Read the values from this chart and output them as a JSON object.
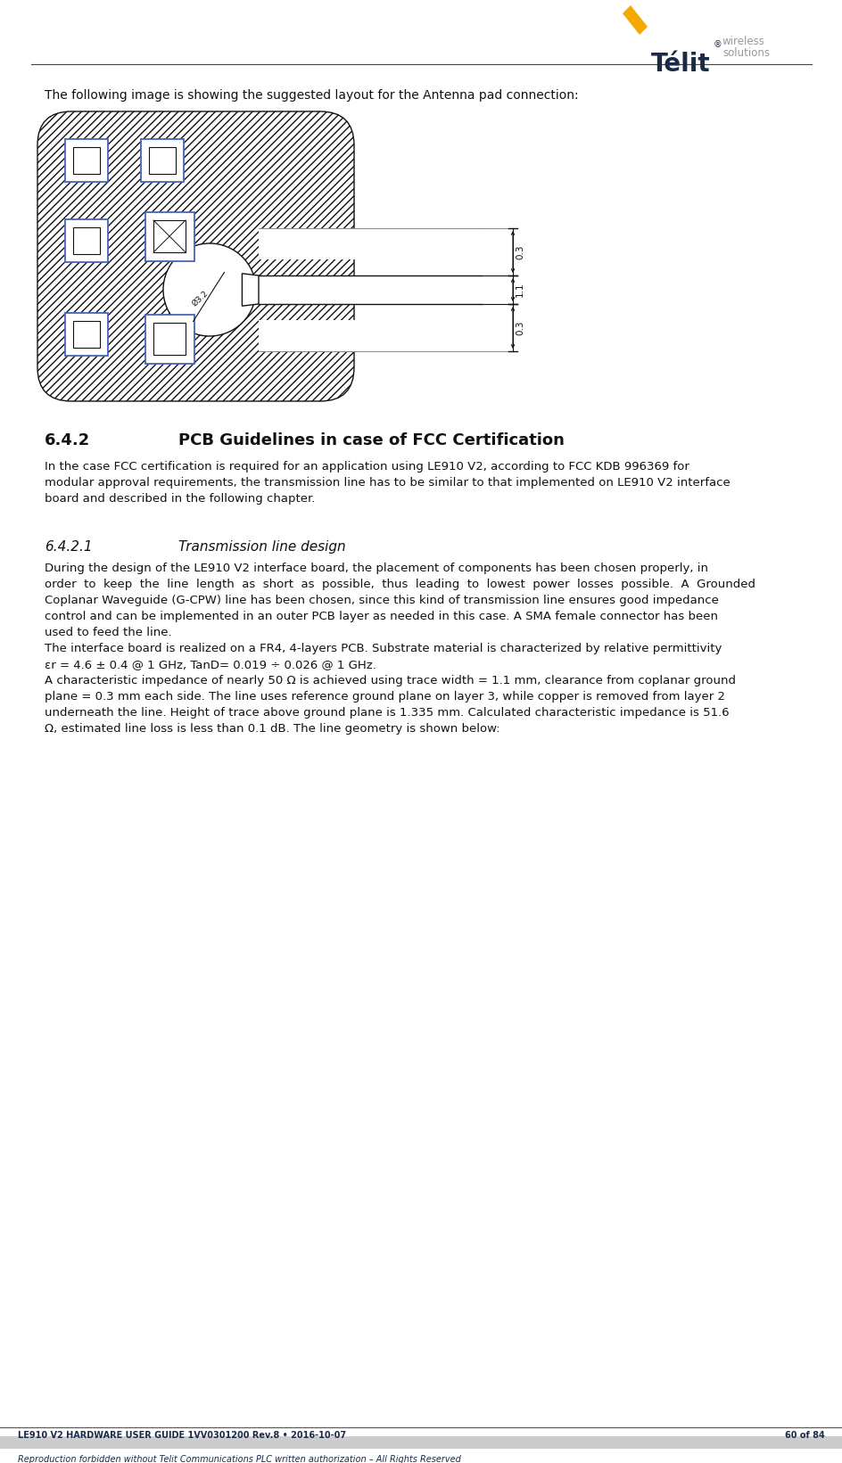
{
  "bg_color": "#ffffff",
  "telit_dark": "#1a2b4a",
  "telit_yellow": "#f5a800",
  "telit_gray": "#999999",
  "intro_text": "The following image is showing the suggested layout for the Antenna pad connection:",
  "section_num": "6.4.2",
  "section_title": "PCB Guidelines in case of FCC Certification",
  "section_body_lines": [
    "In the case FCC certification is required for an application using LE910 V2, according to FCC KDB 996369 for",
    "modular approval requirements, the transmission line has to be similar to that implemented on LE910 V2 interface",
    "board and described in the following chapter."
  ],
  "subsection_num": "6.4.2.1",
  "subsection_title": "Transmission line design",
  "body1_lines": [
    "During the design of the LE910 V2 interface board, the placement of components has been chosen properly, in",
    "order  to  keep  the  line  length  as  short  as  possible,  thus  leading  to  lowest  power  losses  possible.  A  Grounded",
    "Coplanar Waveguide (G-CPW) line has been chosen, since this kind of transmission line ensures good impedance",
    "control and can be implemented in an outer PCB layer as needed in this case. A SMA female connector has been",
    "used to feed the line."
  ],
  "body2_lines": [
    "The interface board is realized on a FR4, 4-layers PCB. Substrate material is characterized by relative permittivity",
    "εr = 4.6 ± 0.4 @ 1 GHz, TanD= 0.019 ÷ 0.026 @ 1 GHz."
  ],
  "body3_lines": [
    "A characteristic impedance of nearly 50 Ω is achieved using trace width = 1.1 mm, clearance from coplanar ground",
    "plane = 0.3 mm each side. The line uses reference ground plane on layer 3, while copper is removed from layer 2",
    "underneath the line. Height of trace above ground plane is 1.335 mm. Calculated characteristic impedance is 51.6",
    "Ω, estimated line loss is less than 0.1 dB. The line geometry is shown below:"
  ],
  "footer_left": "LE910 V2 HARDWARE USER GUIDE 1VV0301200 Rev.8 • 2016-10-07",
  "footer_right": "60 of 84",
  "footer_sub": "Reproduction forbidden without Telit Communications PLC written authorization – All Rights Reserved",
  "hatch_color": "#555555",
  "outline_color": "#111111",
  "blue_color": "#4466bb",
  "dim_color": "#333333"
}
